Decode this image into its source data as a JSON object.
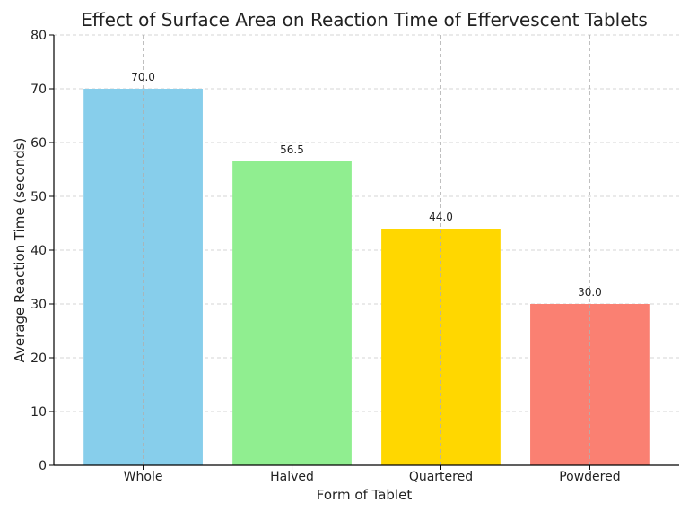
{
  "chart_data": {
    "type": "bar",
    "title": "Effect of Surface Area on Reaction Time of Effervescent Tablets",
    "xlabel": "Form of Tablet",
    "ylabel": "Average Reaction Time (seconds)",
    "categories": [
      "Whole",
      "Halved",
      "Quartered",
      "Powdered"
    ],
    "values": [
      70.0,
      56.5,
      44.0,
      30.0
    ],
    "data_labels": [
      "70.0",
      "56.5",
      "44.0",
      "30.0"
    ],
    "colors": [
      "#87CEEB",
      "#90EE90",
      "#FFD700",
      "#FA8072"
    ],
    "ylim": [
      0,
      80
    ],
    "yticks": [
      0,
      10,
      20,
      30,
      40,
      50,
      60,
      70,
      80
    ],
    "grid": true,
    "legend": "none"
  }
}
